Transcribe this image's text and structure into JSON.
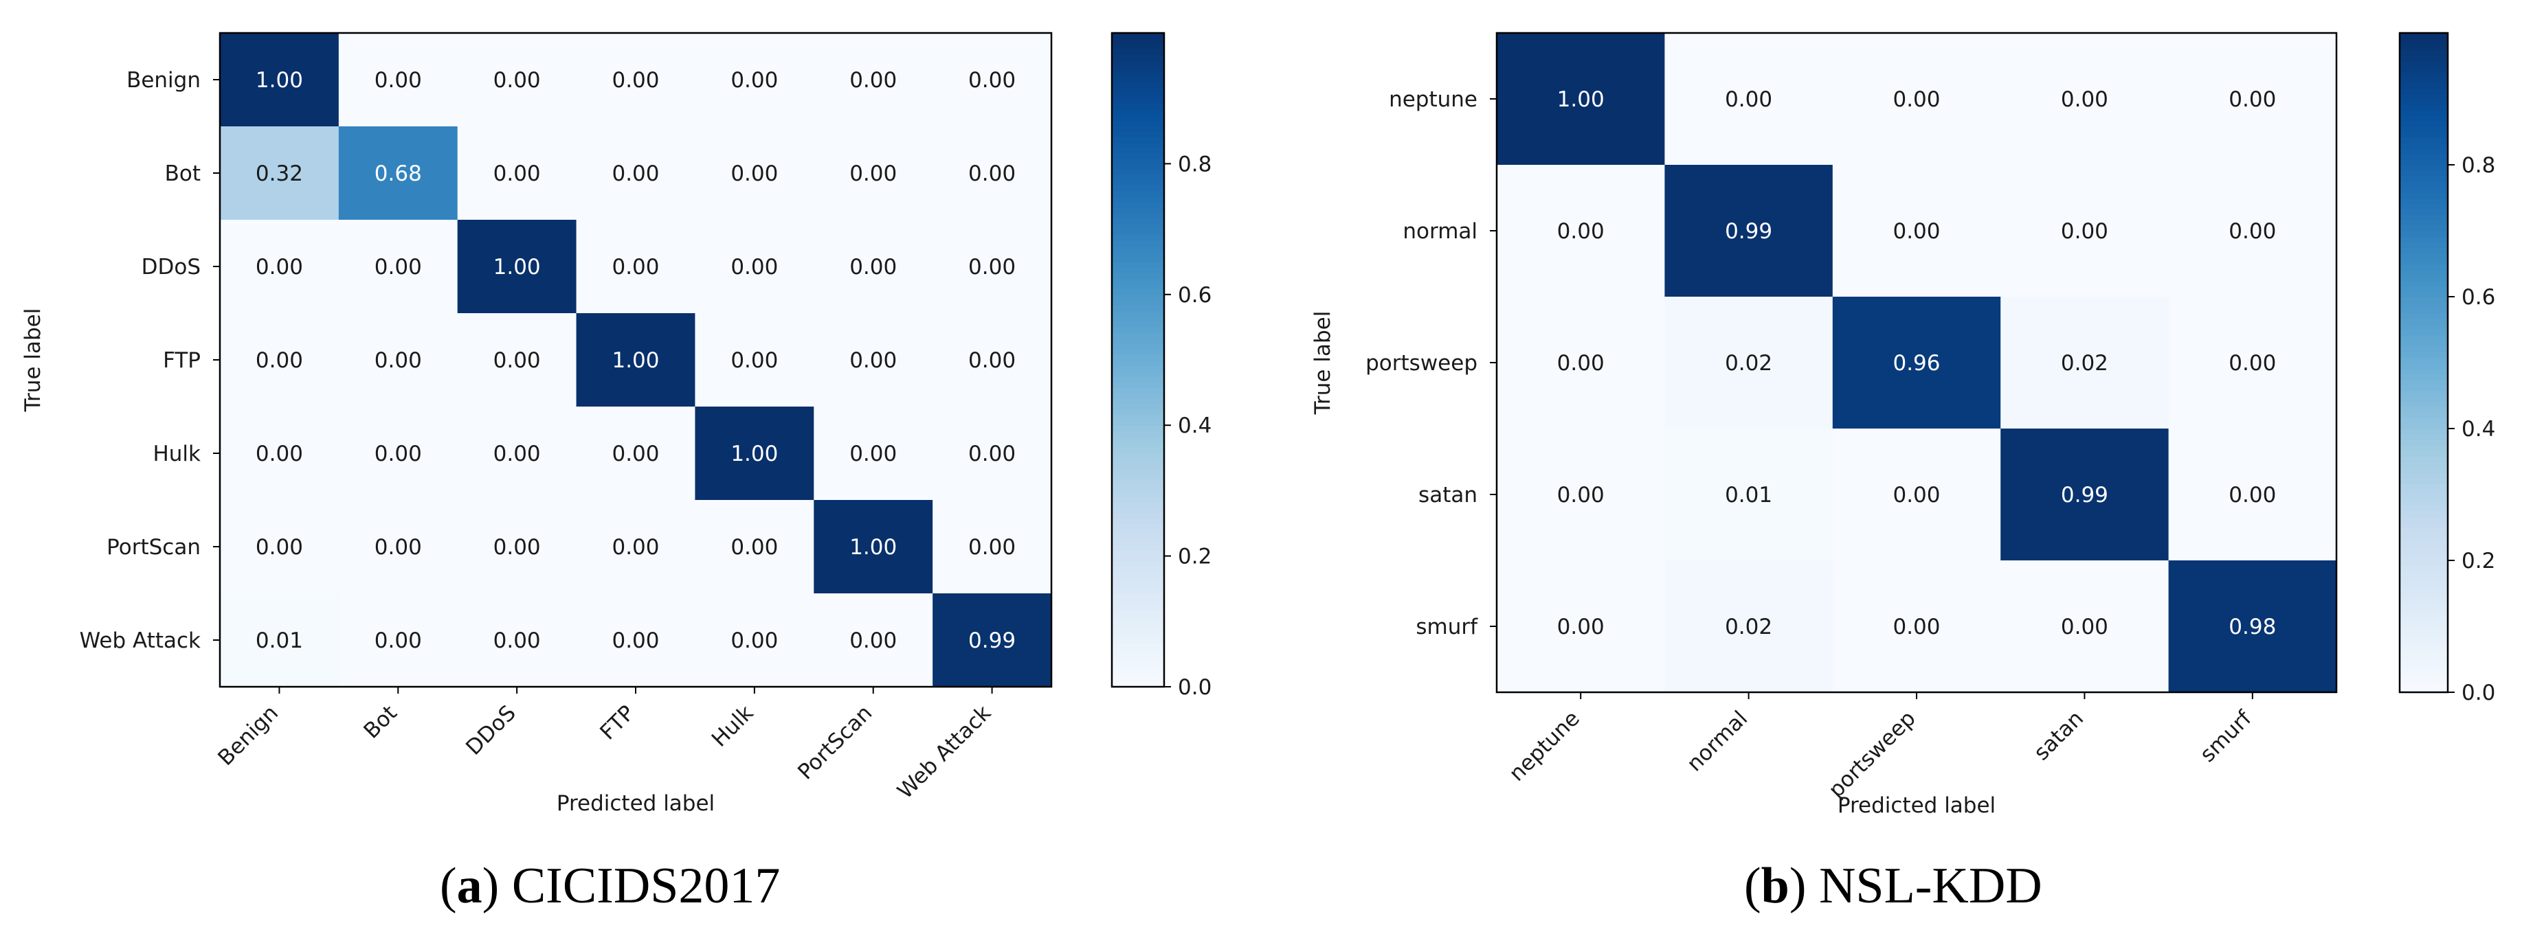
{
  "captions": [
    {
      "open": "(",
      "letter": "a",
      "close": ")",
      "text": " CICIDS2017"
    },
    {
      "open": "(",
      "letter": "b",
      "close": ")",
      "text": " NSL-KDD"
    }
  ],
  "colors": {
    "cmap": [
      "#f7fbff",
      "#deebf7",
      "#c6dbef",
      "#9ecae1",
      "#6baed6",
      "#4292c6",
      "#2171b5",
      "#08519c",
      "#08306b"
    ],
    "text_dark": "#1a1a1a",
    "text_light": "#ffffff",
    "axis": "#000000"
  },
  "chart_data": [
    {
      "type": "heatmap",
      "title": "",
      "xlabel": "Predicted label",
      "ylabel": "True label",
      "x_categories": [
        "Benign",
        "Bot",
        "DDoS",
        "FTP",
        "Hulk",
        "PortScan",
        "Web Attack"
      ],
      "y_categories": [
        "Benign",
        "Bot",
        "DDoS",
        "FTP",
        "Hulk",
        "PortScan",
        "Web Attack"
      ],
      "values": [
        [
          1.0,
          0.0,
          0.0,
          0.0,
          0.0,
          0.0,
          0.0
        ],
        [
          0.32,
          0.68,
          0.0,
          0.0,
          0.0,
          0.0,
          0.0
        ],
        [
          0.0,
          0.0,
          1.0,
          0.0,
          0.0,
          0.0,
          0.0
        ],
        [
          0.0,
          0.0,
          0.0,
          1.0,
          0.0,
          0.0,
          0.0
        ],
        [
          0.0,
          0.0,
          0.0,
          0.0,
          1.0,
          0.0,
          0.0
        ],
        [
          0.0,
          0.0,
          0.0,
          0.0,
          0.0,
          1.0,
          0.0
        ],
        [
          0.01,
          0.0,
          0.0,
          0.0,
          0.0,
          0.0,
          0.99
        ]
      ],
      "cell_labels": [
        [
          "1.00",
          "0.00",
          "0.00",
          "0.00",
          "0.00",
          "0.00",
          "0.00"
        ],
        [
          "0.32",
          "0.68",
          "0.00",
          "0.00",
          "0.00",
          "0.00",
          "0.00"
        ],
        [
          "0.00",
          "0.00",
          "1.00",
          "0.00",
          "0.00",
          "0.00",
          "0.00"
        ],
        [
          "0.00",
          "0.00",
          "0.00",
          "1.00",
          "0.00",
          "0.00",
          "0.00"
        ],
        [
          "0.00",
          "0.00",
          "0.00",
          "0.00",
          "1.00",
          "0.00",
          "0.00"
        ],
        [
          "0.00",
          "0.00",
          "0.00",
          "0.00",
          "0.00",
          "1.00",
          "0.00"
        ],
        [
          "0.01",
          "0.00",
          "0.00",
          "0.00",
          "0.00",
          "0.00",
          "0.99"
        ]
      ],
      "colorbar": {
        "range": [
          0.0,
          1.0
        ],
        "ticks": [
          0.0,
          0.2,
          0.4,
          0.6,
          0.8
        ],
        "tick_labels": [
          "0.0",
          "0.2",
          "0.4",
          "0.6",
          "0.8"
        ]
      },
      "colormap": "Blues"
    },
    {
      "type": "heatmap",
      "title": "",
      "xlabel": "Predicted label",
      "ylabel": "True label",
      "x_categories": [
        "neptune",
        "normal",
        "portsweep",
        "satan",
        "smurf"
      ],
      "y_categories": [
        "neptune",
        "normal",
        "portsweep",
        "satan",
        "smurf"
      ],
      "values": [
        [
          1.0,
          0.0,
          0.0,
          0.0,
          0.0
        ],
        [
          0.0,
          0.99,
          0.0,
          0.0,
          0.0
        ],
        [
          0.0,
          0.02,
          0.96,
          0.02,
          0.0
        ],
        [
          0.0,
          0.01,
          0.0,
          0.99,
          0.0
        ],
        [
          0.0,
          0.02,
          0.0,
          0.0,
          0.98
        ]
      ],
      "cell_labels": [
        [
          "1.00",
          "0.00",
          "0.00",
          "0.00",
          "0.00"
        ],
        [
          "0.00",
          "0.99",
          "0.00",
          "0.00",
          "0.00"
        ],
        [
          "0.00",
          "0.02",
          "0.96",
          "0.02",
          "0.00"
        ],
        [
          "0.00",
          "0.01",
          "0.00",
          "0.99",
          "0.00"
        ],
        [
          "0.00",
          "0.02",
          "0.00",
          "0.00",
          "0.98"
        ]
      ],
      "colorbar": {
        "range": [
          0.0,
          1.0
        ],
        "ticks": [
          0.0,
          0.2,
          0.4,
          0.6,
          0.8
        ],
        "tick_labels": [
          "0.0",
          "0.2",
          "0.4",
          "0.6",
          "0.8"
        ]
      },
      "colormap": "Blues"
    }
  ]
}
